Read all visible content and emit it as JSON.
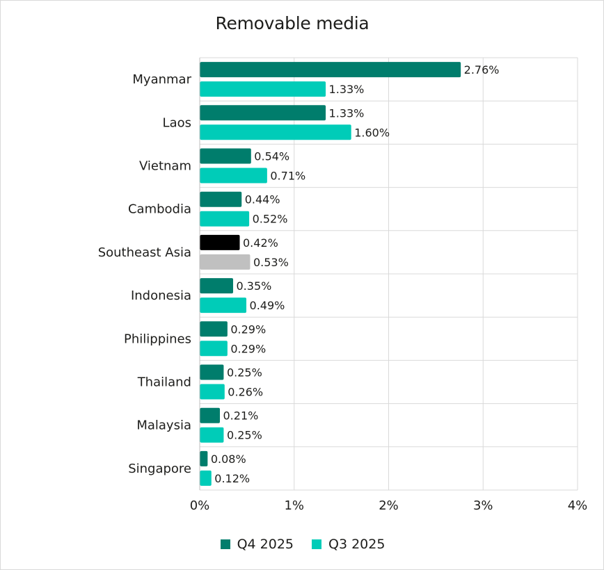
{
  "chart_data": {
    "type": "bar",
    "orientation": "horizontal",
    "title": "Removable media",
    "categories": [
      "Myanmar",
      "Laos",
      "Vietnam",
      "Cambodia",
      "Southeast Asia",
      "Indonesia",
      "Philippines",
      "Thailand",
      "Malaysia",
      "Singapore"
    ],
    "series": [
      {
        "name": "Q4 2025",
        "color": "#007D6C",
        "values": [
          2.76,
          1.33,
          0.54,
          0.44,
          0.42,
          0.35,
          0.29,
          0.25,
          0.21,
          0.08
        ],
        "labels": [
          "2.76%",
          "1.33%",
          "0.54%",
          "0.44%",
          "0.42%",
          "0.35%",
          "0.29%",
          "0.25%",
          "0.21%",
          "0.08%"
        ]
      },
      {
        "name": "Q3 2025",
        "color": "#00CCB8",
        "values": [
          1.33,
          1.6,
          0.71,
          0.52,
          0.53,
          0.49,
          0.29,
          0.26,
          0.25,
          0.12
        ],
        "labels": [
          "1.33%",
          "1.60%",
          "0.71%",
          "0.52%",
          "0.53%",
          "0.49%",
          "0.29%",
          "0.26%",
          "0.25%",
          "0.12%"
        ]
      }
    ],
    "highlight": {
      "category": "Southeast Asia",
      "colors": [
        "#000000",
        "#C0C0C0"
      ]
    },
    "x_ticks": [
      0,
      1,
      2,
      3,
      4
    ],
    "x_tick_labels": [
      "0%",
      "1%",
      "2%",
      "3%",
      "4%"
    ],
    "xlim": [
      0,
      4
    ],
    "grid": true,
    "legend_position": "bottom"
  }
}
